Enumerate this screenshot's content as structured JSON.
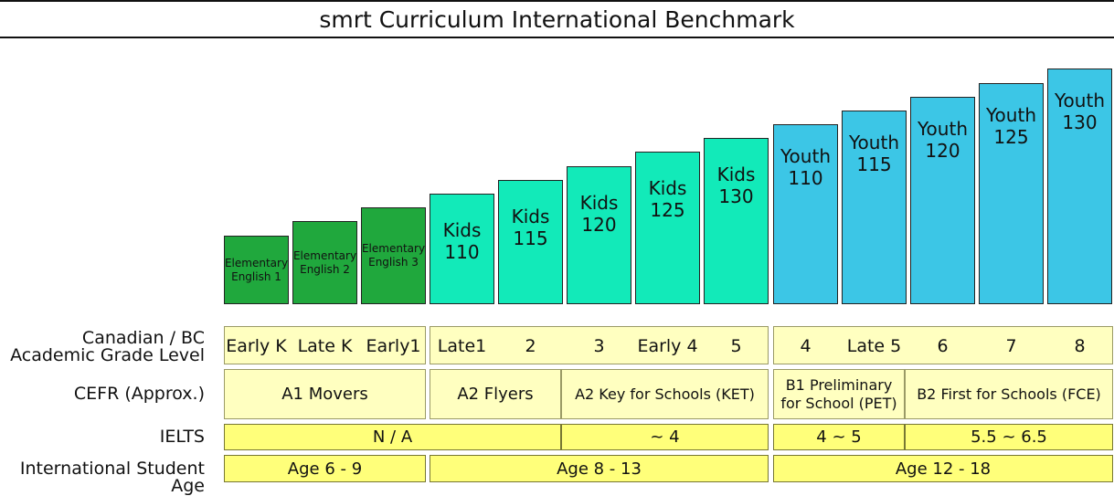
{
  "title": "smrt Curriculum International Benchmark",
  "levels": {
    "elementary": [
      {
        "line1": "Elementary",
        "line2": "English 1"
      },
      {
        "line1": "Elementary",
        "line2": "English 2"
      },
      {
        "line1": "Elementary",
        "line2": "English 3"
      }
    ],
    "kids": [
      {
        "line1": "Kids",
        "line2": "110"
      },
      {
        "line1": "Kids",
        "line2": "115"
      },
      {
        "line1": "Kids",
        "line2": "120"
      },
      {
        "line1": "Kids",
        "line2": "125"
      },
      {
        "line1": "Kids",
        "line2": "130"
      }
    ],
    "youth": [
      {
        "line1": "Youth",
        "line2": "110"
      },
      {
        "line1": "Youth",
        "line2": "115"
      },
      {
        "line1": "Youth",
        "line2": "120"
      },
      {
        "line1": "Youth",
        "line2": "125"
      },
      {
        "line1": "Youth",
        "line2": "130"
      }
    ]
  },
  "rows": {
    "grade": {
      "label_line1": "Canadian / BC",
      "label_line2": "Academic Grade Level",
      "group1": [
        "Early K",
        "Late K",
        "Early1"
      ],
      "group2": [
        "Late1",
        "2",
        "3",
        "Early 4",
        "5"
      ],
      "group3": [
        "4",
        "Late 5",
        "6",
        "7",
        "8"
      ]
    },
    "cefr": {
      "label": "CEFR (Approx.)",
      "a1_movers": "A1 Movers",
      "a2_flyers": "A2 Flyers",
      "a2_ket": "A2 Key for Schools (KET)",
      "b1_pet_line1": "B1 Preliminary",
      "b1_pet_line2": "for School (PET)",
      "b2_fce": "B2 First for Schools (FCE)"
    },
    "ielts": {
      "label": "IELTS",
      "na": "N / A",
      "approx4": "~ 4",
      "range45": "4 ~ 5",
      "range5565": "5.5 ~ 6.5"
    },
    "age": {
      "label": "International Student Age",
      "age1": "Age 6 - 9",
      "age2": "Age 8 - 13",
      "age3": "Age 12 - 18"
    }
  },
  "colors": {
    "elementary": "#20a83d",
    "kids": "#12eab9",
    "youth": "#3cc6e6",
    "cell_light": "#ffffc0",
    "cell_bright": "#ffff7a"
  }
}
